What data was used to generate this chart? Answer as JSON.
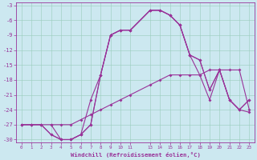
{
  "background_color": "#cce8f0",
  "grid_color": "#99ccbb",
  "line_color": "#993399",
  "xlabel": "Windchill (Refroidissement éolien,°C)",
  "xlim": [
    -0.5,
    23.5
  ],
  "ylim": [
    -30.5,
    -2.5
  ],
  "xtick_labels": [
    "0",
    "1",
    "2",
    "3",
    "4",
    "5",
    "6",
    "7",
    "8",
    "9",
    "10",
    "11",
    "13",
    "14",
    "15",
    "16",
    "17",
    "18",
    "19",
    "20",
    "21",
    "22",
    "23"
  ],
  "xtick_positions": [
    0,
    1,
    2,
    3,
    4,
    5,
    6,
    7,
    8,
    9,
    10,
    11,
    13,
    14,
    15,
    16,
    17,
    18,
    19,
    20,
    21,
    22,
    23
  ],
  "ytick_positions": [
    -30,
    -27,
    -24,
    -21,
    -18,
    -15,
    -12,
    -9,
    -6,
    -3
  ],
  "s1_x": [
    0,
    1,
    2,
    3,
    4,
    5,
    6,
    7,
    8,
    9,
    10,
    11,
    13,
    14,
    15,
    16,
    17,
    18,
    19,
    20,
    21,
    22,
    23
  ],
  "s1_y": [
    -27,
    -27,
    -27,
    -27,
    -27,
    -27,
    -26,
    -25,
    -24,
    -23,
    -22,
    -21,
    -19,
    -18,
    -17,
    -17,
    -17,
    -17,
    -16,
    -16,
    -16,
    -16,
    -24
  ],
  "s2_x": [
    0,
    1,
    2,
    3,
    4,
    5,
    6,
    7,
    8,
    9,
    10,
    11,
    13,
    14,
    15,
    16,
    17,
    18,
    19,
    20,
    21,
    22,
    23
  ],
  "s2_y": [
    -27,
    -27,
    -27,
    -29,
    -30,
    -30,
    -29,
    -27,
    -17,
    -9,
    -8,
    -8,
    -4,
    -4,
    -5,
    -7,
    -13,
    -14,
    -20,
    -16,
    -22,
    -24,
    -22
  ],
  "s3_x": [
    3,
    4,
    5,
    6,
    7,
    8,
    9,
    10,
    11,
    13,
    14,
    15,
    16,
    17,
    18,
    19,
    20,
    21,
    22,
    23
  ],
  "s3_y": [
    -27,
    -30,
    -30,
    -29,
    -22,
    -17,
    -9,
    -8,
    -8,
    -4,
    -4,
    -5,
    -7,
    -13,
    -14,
    -20,
    -16,
    -22,
    -24,
    -22
  ],
  "s4_x": [
    0,
    1,
    2,
    3,
    4,
    5,
    6,
    7,
    8,
    9,
    10,
    11,
    13,
    14,
    15,
    16,
    17,
    18,
    19,
    20,
    21,
    22,
    23
  ],
  "s4_y": [
    -27,
    -27,
    -27,
    -29,
    -30,
    -30,
    -29,
    -27,
    -17,
    -9,
    -8,
    -8,
    -4,
    -4,
    -5,
    -7,
    -13,
    -17,
    -22,
    -16,
    -22,
    -24,
    -24.5
  ]
}
